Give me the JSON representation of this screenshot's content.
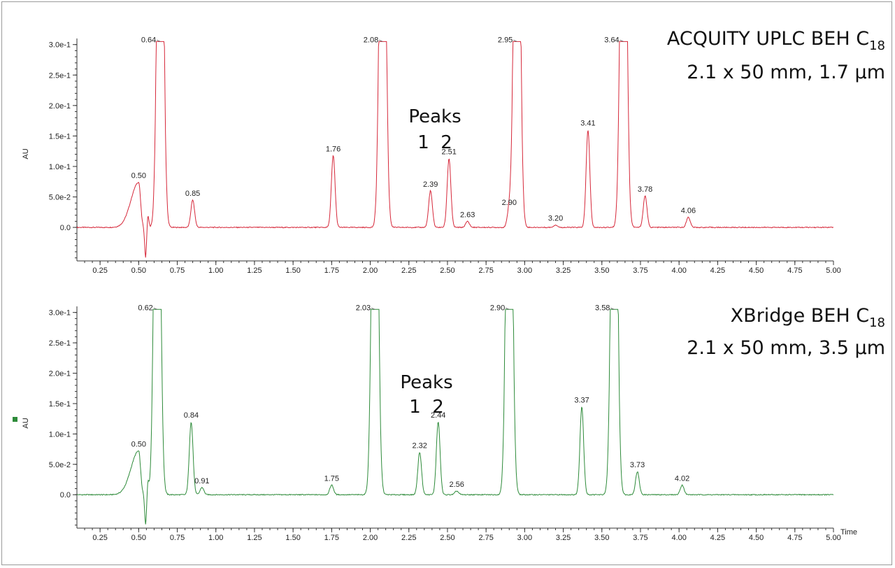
{
  "chart_data": [
    {
      "type": "line",
      "title": "ACQUITY UPLC  BEH C18",
      "title_main": "ACQUITY UPLC  BEH C",
      "title_sub": "18",
      "subtitle": "2.1 x 50 mm, 1.7 µm",
      "ylabel": "AU",
      "xlabel": "",
      "color": "#d6283a",
      "xlim": [
        0.1,
        5.0
      ],
      "ylim": [
        -0.055,
        0.31
      ],
      "x_ticks": [
        "0.25",
        "0.50",
        "0.75",
        "1.00",
        "1.25",
        "1.50",
        "1.75",
        "2.00",
        "2.25",
        "2.50",
        "2.75",
        "3.00",
        "3.25",
        "3.50",
        "3.75",
        "4.00",
        "4.25",
        "4.50",
        "4.75",
        "5.00"
      ],
      "y_ticks": [
        "0.0",
        "5.0e-2",
        "1.0e-1",
        "1.5e-1",
        "2.0e-1",
        "2.5e-1",
        "3.0e-1"
      ],
      "annotation": {
        "line1": "Peaks",
        "line2": "1  2"
      },
      "peaks": [
        {
          "x": 0.5,
          "y": 0.074,
          "label": "0.50"
        },
        {
          "x": 0.64,
          "y": 0.305,
          "label": "0.64"
        },
        {
          "x": 0.85,
          "y": 0.045,
          "label": "0.85"
        },
        {
          "x": 1.76,
          "y": 0.118,
          "label": "1.76"
        },
        {
          "x": 2.08,
          "y": 0.305,
          "label": "2.08"
        },
        {
          "x": 2.39,
          "y": 0.06,
          "label": "2.39"
        },
        {
          "x": 2.51,
          "y": 0.113,
          "label": "2.51"
        },
        {
          "x": 2.63,
          "y": 0.01,
          "label": "2.63"
        },
        {
          "x": 2.9,
          "y": 0.03,
          "label": "2.90"
        },
        {
          "x": 2.95,
          "y": 0.305,
          "label": "2.95"
        },
        {
          "x": 3.2,
          "y": 0.004,
          "label": "3.20"
        },
        {
          "x": 3.41,
          "y": 0.16,
          "label": "3.41"
        },
        {
          "x": 3.64,
          "y": 0.305,
          "label": "3.64"
        },
        {
          "x": 3.78,
          "y": 0.052,
          "label": "3.78"
        },
        {
          "x": 4.06,
          "y": 0.017,
          "label": "4.06"
        }
      ]
    },
    {
      "type": "line",
      "title": "XBridge BEH C18",
      "title_main": "XBridge BEH C",
      "title_sub": "18",
      "subtitle": "2.1 x 50 mm, 3.5 µm",
      "ylabel": "AU",
      "xlabel": "Time",
      "color": "#2e8b3a",
      "xlim": [
        0.1,
        5.0
      ],
      "ylim": [
        -0.055,
        0.31
      ],
      "x_ticks": [
        "0.25",
        "0.50",
        "0.75",
        "1.00",
        "1.25",
        "1.50",
        "1.75",
        "2.00",
        "2.25",
        "2.50",
        "2.75",
        "3.00",
        "3.25",
        "3.50",
        "3.75",
        "4.00",
        "4.25",
        "4.50",
        "4.75",
        "5.00"
      ],
      "y_ticks": [
        "0.0",
        "5.0e-2",
        "1.0e-1",
        "1.5e-1",
        "2.0e-1",
        "2.5e-1",
        "3.0e-1"
      ],
      "annotation": {
        "line1": "Peaks",
        "line2": "1  2"
      },
      "peaks": [
        {
          "x": 0.5,
          "y": 0.072,
          "label": "0.50"
        },
        {
          "x": 0.62,
          "y": 0.305,
          "label": "0.62"
        },
        {
          "x": 0.84,
          "y": 0.12,
          "label": "0.84"
        },
        {
          "x": 0.91,
          "y": 0.012,
          "label": "0.91"
        },
        {
          "x": 1.75,
          "y": 0.016,
          "label": "1.75"
        },
        {
          "x": 2.03,
          "y": 0.305,
          "label": "2.03"
        },
        {
          "x": 2.32,
          "y": 0.07,
          "label": "2.32"
        },
        {
          "x": 2.44,
          "y": 0.12,
          "label": "2.44"
        },
        {
          "x": 2.56,
          "y": 0.006,
          "label": "2.56"
        },
        {
          "x": 2.9,
          "y": 0.305,
          "label": "2.90"
        },
        {
          "x": 3.37,
          "y": 0.145,
          "label": "3.37"
        },
        {
          "x": 3.58,
          "y": 0.305,
          "label": "3.58"
        },
        {
          "x": 3.73,
          "y": 0.038,
          "label": "3.73"
        },
        {
          "x": 4.02,
          "y": 0.016,
          "label": "4.02"
        }
      ]
    }
  ]
}
